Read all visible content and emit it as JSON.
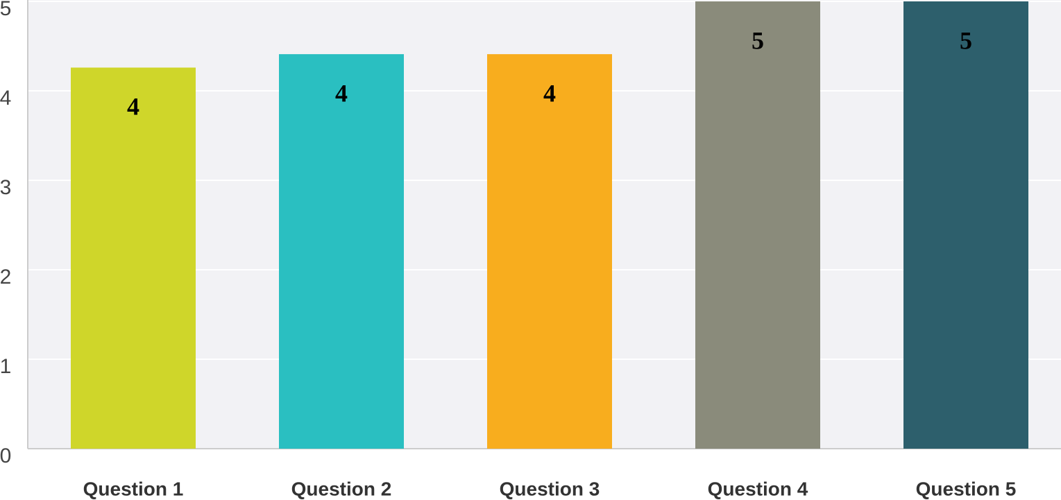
{
  "chart_data": {
    "type": "bar",
    "categories": [
      "Question 1",
      "Question 2",
      "Question 3",
      "Question 4",
      "Question 5"
    ],
    "values": [
      4.26,
      4.41,
      4.41,
      5,
      5
    ],
    "value_labels": [
      "4",
      "4",
      "4",
      "5",
      "5"
    ],
    "colors": [
      "#cfd62a",
      "#2abfc1",
      "#f8ad1e",
      "#8a8b7b",
      "#2d5f6c"
    ],
    "ylim": [
      0,
      5
    ],
    "yticks": [
      0,
      1,
      2,
      3,
      4,
      5
    ],
    "grid": true
  }
}
